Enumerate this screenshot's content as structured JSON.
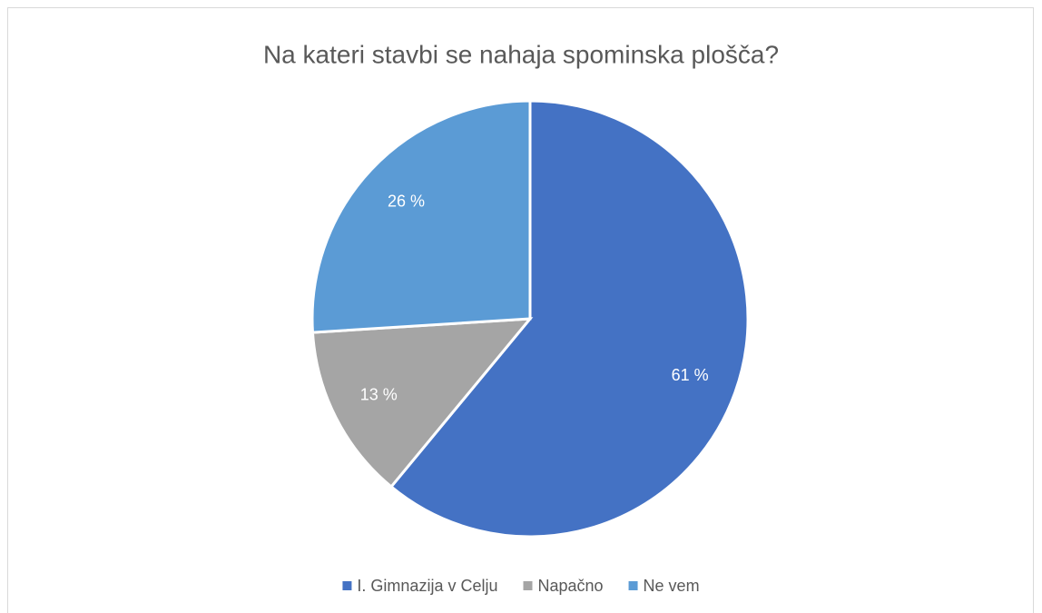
{
  "chart_data": {
    "type": "pie",
    "title": "Na kateri stavbi se nahaja spominska plošča?",
    "categories": [
      "I. Gimnazija v Celju",
      "Napačno",
      "Ne vem"
    ],
    "values": [
      61,
      13,
      26
    ],
    "value_labels": [
      "61 %",
      "13 %",
      "26 %"
    ],
    "colors": [
      "#4472c4",
      "#a5a5a5",
      "#5b9bd5"
    ],
    "legend": "bottom"
  }
}
